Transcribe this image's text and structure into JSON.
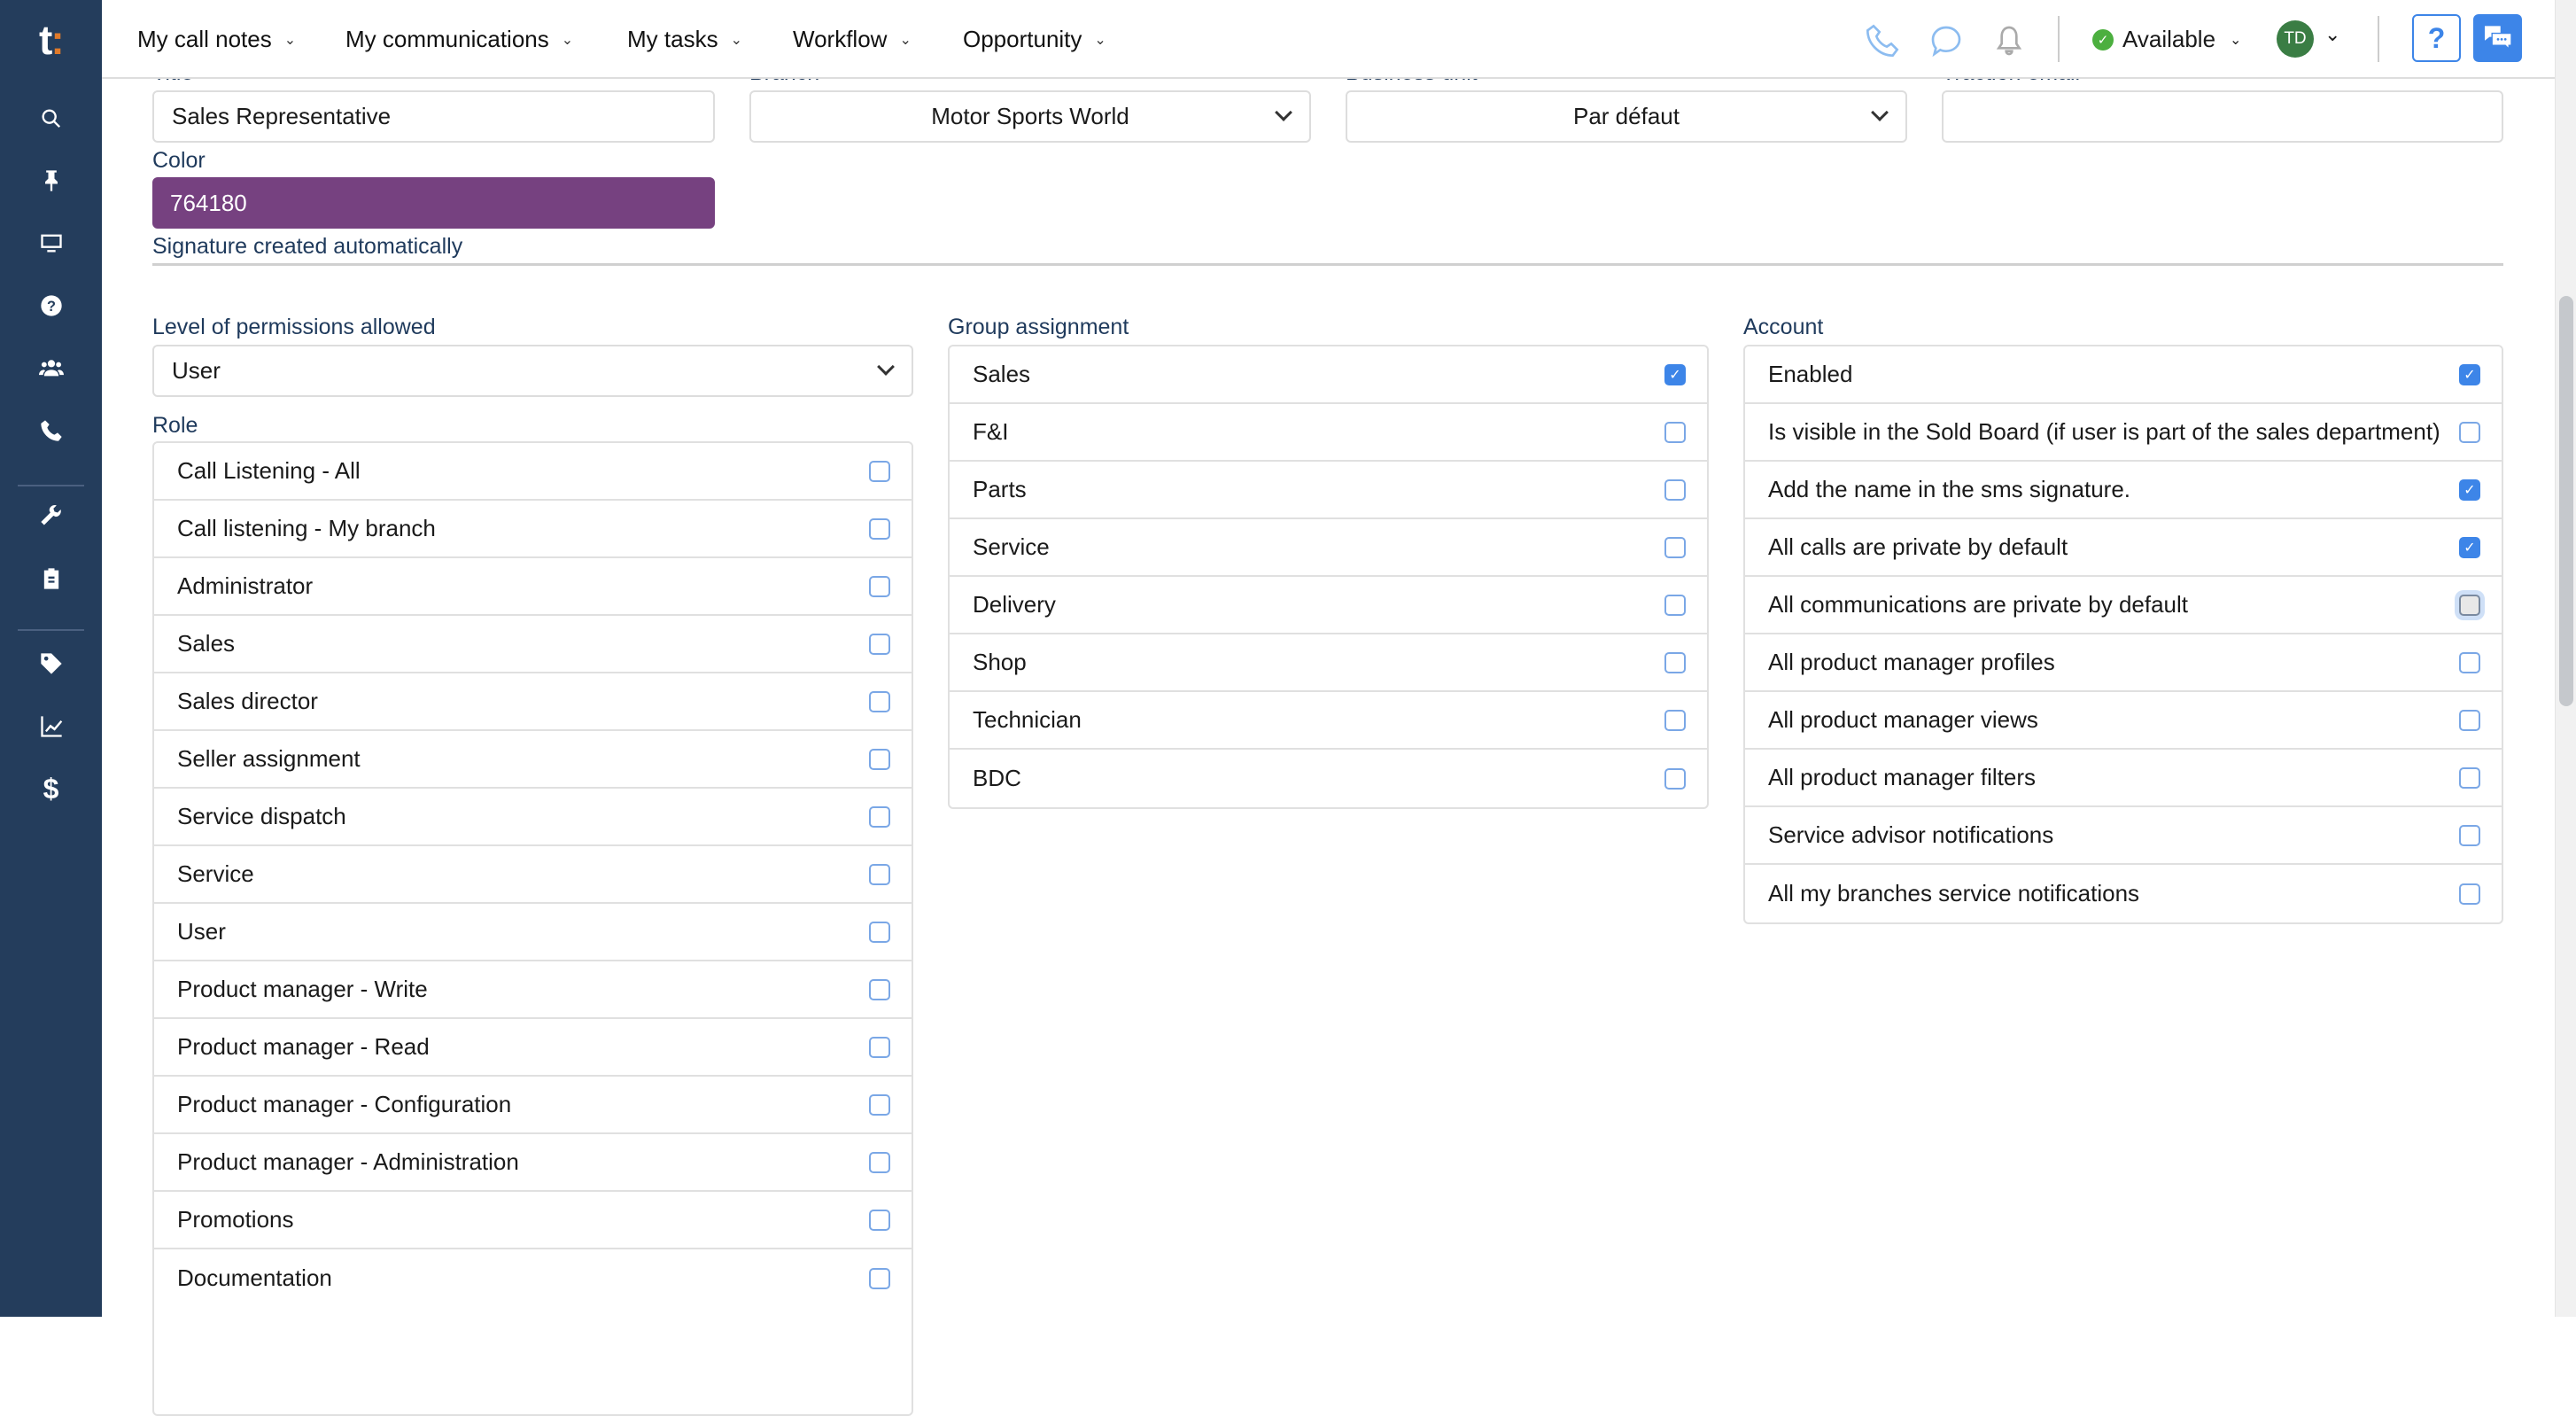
{
  "header": {
    "nav": [
      "My call notes",
      "My communications",
      "My tasks",
      "Workflow",
      "Opportunity"
    ],
    "status": "Available",
    "avatar_initials": "TD",
    "help_label": "?"
  },
  "sidebar": {
    "logo": "t",
    "icons": [
      "search-icon",
      "pin-icon",
      "monitor-icon",
      "help-circle-icon",
      "users-icon",
      "phone-icon",
      "wrench-icon",
      "clipboard-icon",
      "tag-icon",
      "chart-line-icon",
      "dollar-icon"
    ]
  },
  "form": {
    "title_label": "Title",
    "title_value": "Sales Representative",
    "branch_label": "Branch",
    "branch_value": "Motor Sports World",
    "business_unit_label": "Business unit",
    "business_unit_value": "Par défaut",
    "traction_email_label": "Traction email",
    "traction_email_value": "",
    "color_label": "Color",
    "color_value": "764180",
    "color_hex": "#764180",
    "signature_text": "Signature created automatically",
    "permissions_label": "Level of permissions allowed",
    "permissions_value": "User",
    "role_label": "Role",
    "roles": [
      {
        "label": "Call Listening - All",
        "checked": false
      },
      {
        "label": "Call listening - My branch",
        "checked": false
      },
      {
        "label": "Administrator",
        "checked": false
      },
      {
        "label": "Sales",
        "checked": false
      },
      {
        "label": "Sales director",
        "checked": false
      },
      {
        "label": "Seller assignment",
        "checked": false
      },
      {
        "label": "Service dispatch",
        "checked": false
      },
      {
        "label": "Service",
        "checked": false
      },
      {
        "label": "User",
        "checked": false
      },
      {
        "label": "Product manager - Write",
        "checked": false
      },
      {
        "label": "Product manager - Read",
        "checked": false
      },
      {
        "label": "Product manager - Configuration",
        "checked": false
      },
      {
        "label": "Product manager - Administration",
        "checked": false
      },
      {
        "label": "Promotions",
        "checked": false
      },
      {
        "label": "Documentation",
        "checked": false
      }
    ],
    "group_label": "Group assignment",
    "groups": [
      {
        "label": "Sales",
        "checked": true
      },
      {
        "label": "F&I",
        "checked": false
      },
      {
        "label": "Parts",
        "checked": false
      },
      {
        "label": "Service",
        "checked": false
      },
      {
        "label": "Delivery",
        "checked": false
      },
      {
        "label": "Shop",
        "checked": false
      },
      {
        "label": "Technician",
        "checked": false
      },
      {
        "label": "BDC",
        "checked": false
      }
    ],
    "account_label": "Account",
    "account": [
      {
        "label": "Enabled",
        "checked": true
      },
      {
        "label": "Is visible in the Sold Board (if user is part of the sales department)",
        "checked": false
      },
      {
        "label": "Add the name in the sms signature.",
        "checked": true
      },
      {
        "label": "All calls are private by default",
        "checked": true
      },
      {
        "label": "All communications are private by default",
        "checked": false,
        "focused": true
      },
      {
        "label": "All product manager profiles",
        "checked": false
      },
      {
        "label": "All product manager views",
        "checked": false
      },
      {
        "label": "All product manager filters",
        "checked": false
      },
      {
        "label": "Service advisor notifications",
        "checked": false
      },
      {
        "label": "All my branches service notifications",
        "checked": false
      }
    ]
  },
  "colors": {
    "sidebar": "#243d5c",
    "accent": "#3d85e8",
    "available": "#4caf3f",
    "avatar": "#3a7d44"
  }
}
